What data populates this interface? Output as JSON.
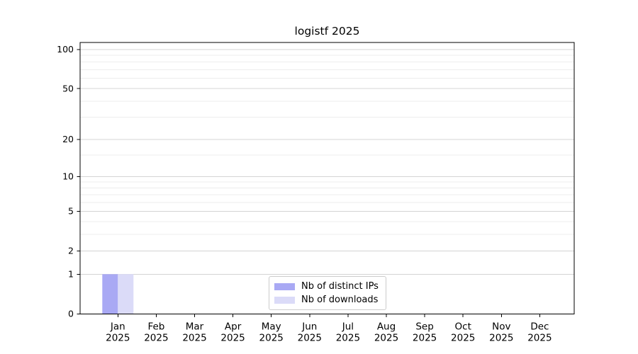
{
  "title": "logistf 2025",
  "chart_data": {
    "type": "bar",
    "title": "logistf 2025",
    "categories": [
      "Jan",
      "Feb",
      "Mar",
      "Apr",
      "May",
      "Jun",
      "Jul",
      "Aug",
      "Sep",
      "Oct",
      "Nov",
      "Dec"
    ],
    "x_year_label": "2025",
    "series": [
      {
        "name": "Nb of distinct IPs",
        "color": "#a9a9f4",
        "values": [
          1,
          0,
          0,
          0,
          0,
          0,
          0,
          0,
          0,
          0,
          0,
          0
        ]
      },
      {
        "name": "Nb of downloads",
        "color": "#dbdbf8",
        "values": [
          1,
          0,
          0,
          0,
          0,
          0,
          0,
          0,
          0,
          0,
          0,
          0
        ]
      }
    ],
    "xlabel": "",
    "ylabel": "",
    "y_scale": "log1p",
    "ylim": [
      0,
      113
    ],
    "y_ticks": [
      0,
      1,
      2,
      5,
      10,
      20,
      50,
      100
    ],
    "y_minor_ticks": [
      3,
      4,
      6,
      7,
      8,
      9,
      15,
      30,
      40,
      60,
      70,
      80,
      90
    ],
    "grid": true,
    "legend_position": "lower center"
  },
  "colors": {
    "major_grid": "#d4d4d4",
    "minor_grid": "#ededed",
    "spine": "#000000",
    "tick_text": "#000000",
    "legend_border": "#cccccc"
  }
}
